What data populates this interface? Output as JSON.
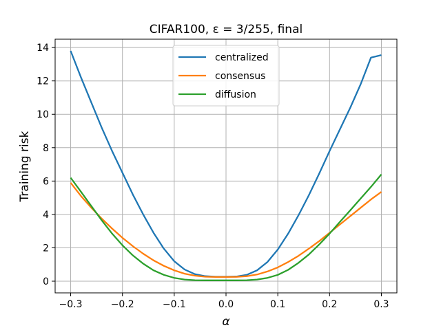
{
  "chart_data": {
    "type": "line",
    "title": "CIFAR100, ε = 3/255, final",
    "xlabel": "α",
    "ylabel": "Training risk",
    "xlim": [
      -0.33,
      0.33
    ],
    "ylim": [
      -0.7,
      14.5
    ],
    "grid": true,
    "legend_position": "top-center",
    "x_ticks": [
      -0.3,
      -0.2,
      -0.1,
      0.0,
      0.1,
      0.2,
      0.3
    ],
    "x_tick_labels": [
      "−0.3",
      "−0.2",
      "−0.1",
      "0.0",
      "0.1",
      "0.2",
      "0.3"
    ],
    "y_ticks": [
      0,
      2,
      4,
      6,
      8,
      10,
      12,
      14
    ],
    "y_tick_labels": [
      "0",
      "2",
      "4",
      "6",
      "8",
      "10",
      "12",
      "14"
    ],
    "x": [
      -0.3,
      -0.28,
      -0.26,
      -0.24,
      -0.22,
      -0.2,
      -0.18,
      -0.16,
      -0.14,
      -0.12,
      -0.1,
      -0.08,
      -0.06,
      -0.04,
      -0.02,
      0.0,
      0.02,
      0.04,
      0.06,
      0.08,
      0.1,
      0.12,
      0.14,
      0.16,
      0.18,
      0.2,
      0.22,
      0.24,
      0.26,
      0.28,
      0.3
    ],
    "series": [
      {
        "name": "centralized",
        "color": "#1f77b4",
        "values": [
          13.8,
          12.2,
          10.7,
          9.2,
          7.8,
          6.5,
          5.2,
          4.0,
          2.9,
          1.95,
          1.2,
          0.7,
          0.42,
          0.3,
          0.27,
          0.27,
          0.28,
          0.38,
          0.65,
          1.15,
          1.9,
          2.85,
          3.95,
          5.15,
          6.45,
          7.8,
          9.1,
          10.4,
          11.8,
          13.4,
          13.55
        ]
      },
      {
        "name": "consensus",
        "color": "#ff7f0e",
        "values": [
          5.9,
          5.1,
          4.4,
          3.75,
          3.15,
          2.6,
          2.1,
          1.65,
          1.25,
          0.92,
          0.65,
          0.45,
          0.33,
          0.27,
          0.25,
          0.25,
          0.26,
          0.3,
          0.4,
          0.58,
          0.83,
          1.15,
          1.52,
          1.95,
          2.4,
          2.9,
          3.4,
          3.9,
          4.4,
          4.9,
          5.35
        ]
      },
      {
        "name": "diffusion",
        "color": "#2ca02c",
        "values": [
          6.2,
          5.35,
          4.5,
          3.65,
          2.85,
          2.15,
          1.55,
          1.05,
          0.65,
          0.38,
          0.2,
          0.1,
          0.06,
          0.05,
          0.05,
          0.05,
          0.05,
          0.06,
          0.1,
          0.2,
          0.38,
          0.68,
          1.1,
          1.6,
          2.2,
          2.85,
          3.55,
          4.25,
          4.95,
          5.65,
          6.4
        ]
      }
    ]
  }
}
